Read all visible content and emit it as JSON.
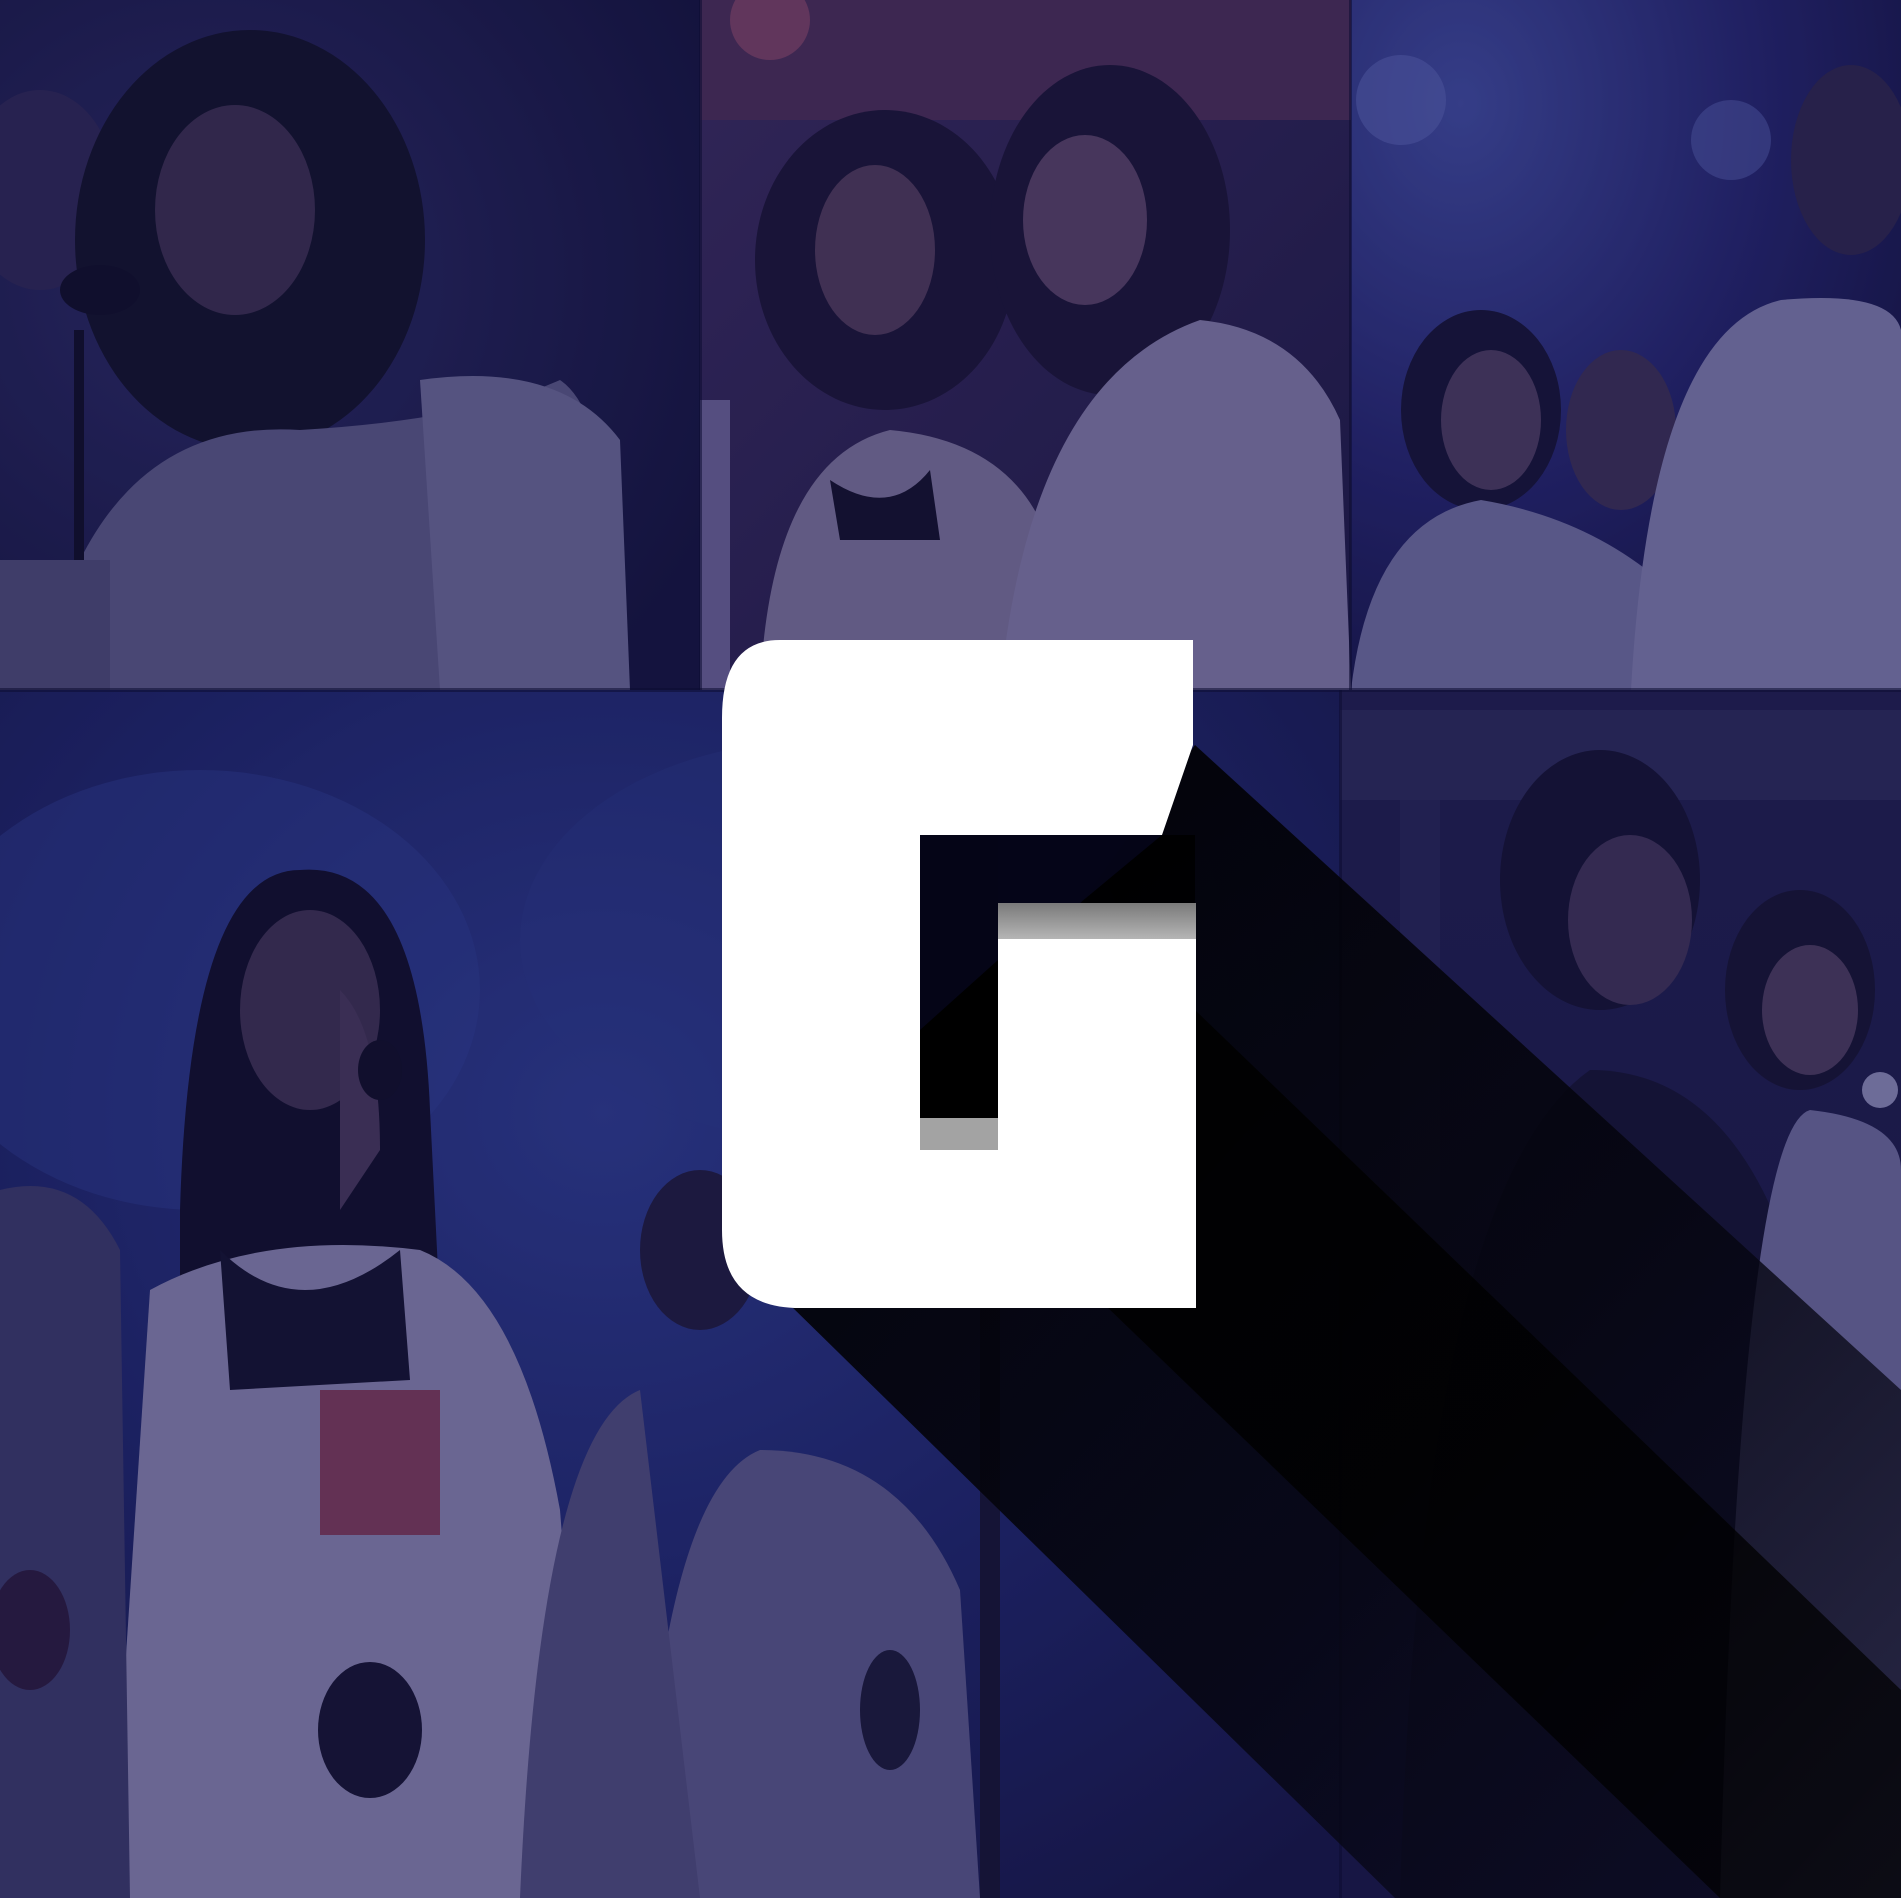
{
  "image": {
    "kind": "logo-collage",
    "background_color": "#15143a",
    "tint_color": "#1c1a5c",
    "logo": {
      "letter": "G",
      "fill_color": "#ffffff",
      "inner_bar_color": "#a3a3a3",
      "shadow_color": "#000000"
    },
    "panels": [
      {
        "name": "top-left-photo",
        "subject": "singer-with-microphone"
      },
      {
        "name": "top-center-photo",
        "subject": "two-singers"
      },
      {
        "name": "top-right-photo",
        "subject": "choir-group"
      },
      {
        "name": "bottom-left-photo",
        "subject": "lead-singer"
      },
      {
        "name": "bottom-right-photo",
        "subject": "choir-singers"
      }
    ]
  }
}
